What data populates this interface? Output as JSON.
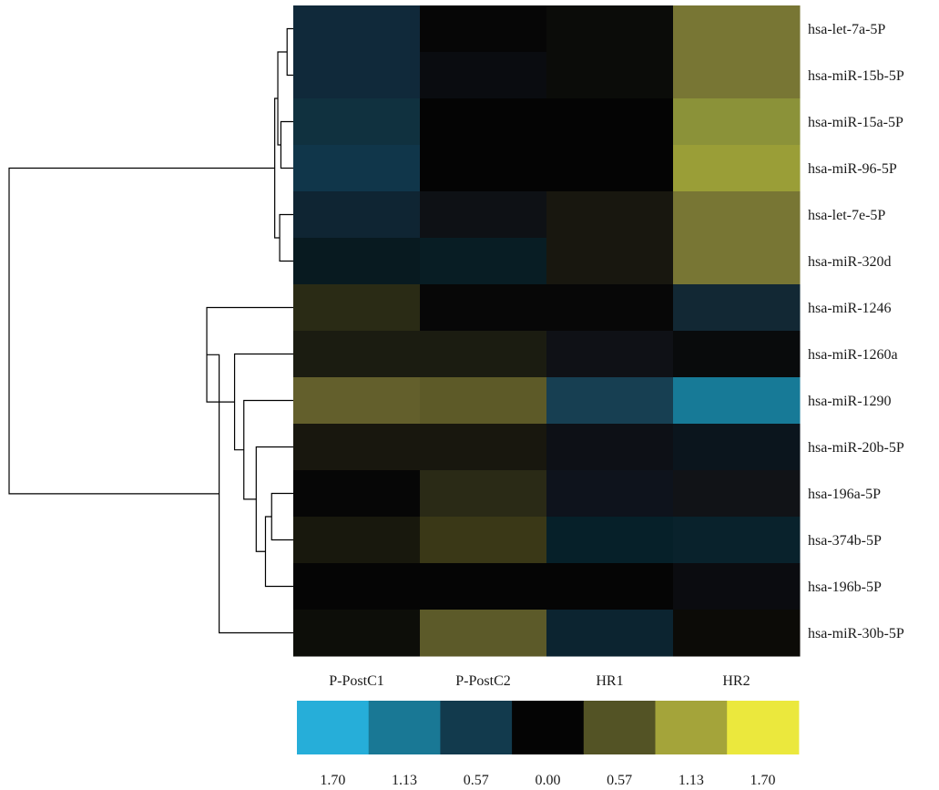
{
  "chart_data": {
    "type": "heatmap",
    "columns": [
      "P-PostC1",
      "P-PostC2",
      "HR1",
      "HR2"
    ],
    "rows": [
      "hsa-let-7a-5P",
      "hsa-miR-15b-5P",
      "hsa-miR-15a-5P",
      "hsa-miR-96-5P",
      "hsa-let-7e-5P",
      "hsa-miR-320d",
      "hsa-miR-1246",
      "hsa-miR-1260a",
      "hsa-miR-1290",
      "hsa-miR-20b-5P",
      "hsa-196a-5P",
      "hsa-374b-5P",
      "hsa-196b-5P",
      "hsa-miR-30b-5P"
    ],
    "cell_colors": [
      [
        "#10293a",
        "#060606",
        "#0b0c09",
        "#787634"
      ],
      [
        "#10293a",
        "#0a0c10",
        "#0b0c09",
        "#787634"
      ],
      [
        "#10313f",
        "#040404",
        "#040404",
        "#8b9239"
      ],
      [
        "#10364a",
        "#040404",
        "#040404",
        "#9a9e37"
      ],
      [
        "#0f2533",
        "#0e1115",
        "#18170f",
        "#787634"
      ],
      [
        "#081a20",
        "#081d24",
        "#18170f",
        "#787634"
      ],
      [
        "#2a2b15",
        "#070707",
        "#070707",
        "#122834"
      ],
      [
        "#1b1c11",
        "#1b1c11",
        "#0f1116",
        "#090b0c"
      ],
      [
        "#635f2c",
        "#5d5a28",
        "#173f52",
        "#177a97"
      ],
      [
        "#18170e",
        "#18170e",
        "#0d1016",
        "#0b151d"
      ],
      [
        "#060606",
        "#2a2a16",
        "#0e131c",
        "#111317"
      ],
      [
        "#18180d",
        "#3a3817",
        "#062029",
        "#09222c"
      ],
      [
        "#050505",
        "#050505",
        "#050505",
        "#0b0c10"
      ],
      [
        "#0d0e09",
        "#5c5a29",
        "#0c2430",
        "#0c0b07"
      ]
    ],
    "legend": {
      "colors": [
        "#26aed9",
        "#197895",
        "#123a4d",
        "#040404",
        "#535325",
        "#a4a43a",
        "#ebe83d"
      ],
      "labels": [
        "1.70",
        "1.13",
        "0.57",
        "0.00",
        "0.57",
        "1.13",
        "1.70"
      ]
    },
    "dendrogram_merges": [
      [
        0,
        1,
        1
      ],
      [
        2,
        3,
        2
      ],
      [
        -1,
        -2,
        2.5
      ],
      [
        4,
        5,
        2.2
      ],
      [
        -3,
        -4,
        3
      ],
      [
        10,
        11,
        3.5
      ],
      [
        -6,
        12,
        4.5
      ],
      [
        9,
        -7,
        6
      ],
      [
        8,
        -8,
        8
      ],
      [
        7,
        -9,
        9.5
      ],
      [
        6,
        -10,
        14
      ],
      [
        -11,
        13,
        12
      ],
      [
        -5,
        -12,
        46
      ]
    ]
  }
}
